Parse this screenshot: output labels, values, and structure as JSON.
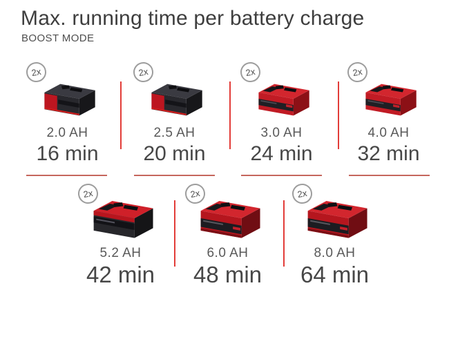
{
  "header": {
    "title": "Max. running time per battery charge",
    "subtitle": "BOOST MODE"
  },
  "colors": {
    "brand_red": "#c41b24",
    "divider_red": "#e23c38",
    "underline_red": "#c5665c",
    "title_text": "#3e3e3e",
    "label_text": "#595959",
    "time_text": "#474747",
    "badge_border": "#9d9d9d",
    "background": "#ffffff"
  },
  "items": [
    {
      "capacity": "2.0 AH",
      "time": "16 min",
      "badge": "2x",
      "variant": "small-black"
    },
    {
      "capacity": "2.5 AH",
      "time": "20 min",
      "badge": "2x",
      "variant": "small-black"
    },
    {
      "capacity": "3.0 AH",
      "time": "24 min",
      "badge": "2x",
      "variant": "small-red"
    },
    {
      "capacity": "4.0 AH",
      "time": "32 min",
      "badge": "2x",
      "variant": "small-red"
    },
    {
      "capacity": "5.2 AH",
      "time": "42 min",
      "badge": "2x",
      "variant": "large-black"
    },
    {
      "capacity": "6.0 AH",
      "time": "48 min",
      "badge": "2x",
      "variant": "large-red"
    },
    {
      "capacity": "8.0 AH",
      "time": "64 min",
      "badge": "2x",
      "variant": "large-red"
    }
  ],
  "chart_data": {
    "type": "table",
    "title": "Max. running time per battery charge",
    "subtitle": "BOOST MODE",
    "columns": [
      "battery_capacity",
      "max_running_time"
    ],
    "rows": [
      [
        "2.0 AH",
        "16 min"
      ],
      [
        "2.5 AH",
        "20 min"
      ],
      [
        "3.0 AH",
        "24 min"
      ],
      [
        "4.0 AH",
        "32 min"
      ],
      [
        "5.2 AH",
        "42 min"
      ],
      [
        "6.0 AH",
        "48 min"
      ],
      [
        "8.0 AH",
        "64 min"
      ]
    ],
    "capacities_ah": [
      2.0,
      2.5,
      3.0,
      4.0,
      5.2,
      6.0,
      8.0
    ],
    "runtimes_min": [
      16,
      20,
      24,
      32,
      42,
      48,
      64
    ],
    "batteries_per_setup": "2x",
    "layout": {
      "top_row_capacities": [
        "2.0 AH",
        "2.5 AH",
        "3.0 AH",
        "4.0 AH"
      ],
      "bottom_row_capacities": [
        "5.2 AH",
        "6.0 AH",
        "8.0 AH"
      ]
    }
  }
}
